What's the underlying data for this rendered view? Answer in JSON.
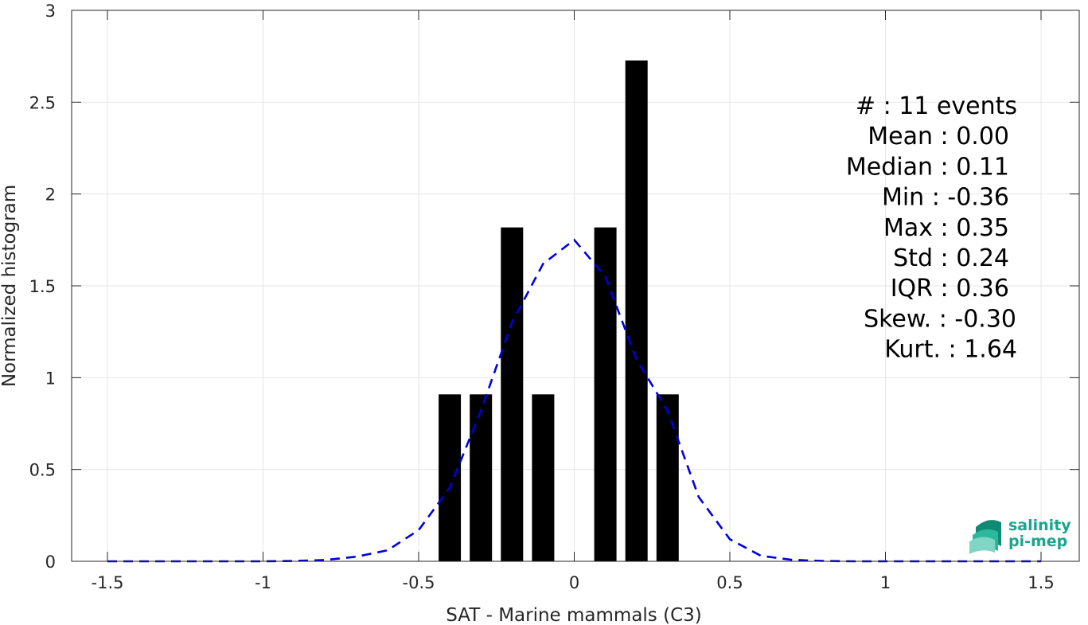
{
  "chart_data": {
    "type": "bar",
    "xlabel": "SAT - Marine mammals (C3)",
    "ylabel": "Normalized histogram",
    "xlim": [
      -1.5,
      1.5
    ],
    "ylim": [
      0,
      3
    ],
    "x_ticks": [
      "-1.5",
      "-1",
      "-0.5",
      "0",
      "0.5",
      "1",
      "1.5"
    ],
    "y_ticks": [
      "0",
      "0.5",
      "1",
      "1.5",
      "2",
      "2.5",
      "3"
    ],
    "grid": true,
    "bin_width": 0.1,
    "bars": {
      "x": [
        -0.4,
        -0.3,
        -0.2,
        -0.1,
        0.1,
        0.2,
        0.3
      ],
      "values": [
        0.909,
        0.909,
        1.818,
        0.909,
        1.818,
        2.727,
        0.909
      ],
      "color": "#000000"
    },
    "fit_curve": {
      "style": "dashed",
      "color": "#0000dd",
      "x": [
        -1.5,
        -1.4,
        -1.3,
        -1.2,
        -1.1,
        -1.0,
        -0.9,
        -0.8,
        -0.7,
        -0.6,
        -0.5,
        -0.4,
        -0.3,
        -0.2,
        -0.1,
        0.0,
        0.1,
        0.2,
        0.3,
        0.4,
        0.5,
        0.6,
        0.7,
        0.8,
        0.9,
        1.0,
        1.1,
        1.2,
        1.3,
        1.4,
        1.5
      ],
      "y": [
        0,
        0,
        0,
        0,
        0,
        0,
        0.002,
        0.007,
        0.025,
        0.06,
        0.17,
        0.4,
        0.82,
        1.3,
        1.62,
        1.75,
        1.55,
        1.1,
        0.82,
        0.35,
        0.12,
        0.03,
        0.008,
        0.002,
        0,
        0,
        0,
        0,
        0,
        0,
        0
      ]
    },
    "stats": [
      "#  : 11 events",
      "Mean : 0.00",
      "Median : 0.11",
      "Min : -0.36",
      "Max : 0.35",
      "Std : 0.24",
      "IQR : 0.36",
      "Skew. : -0.30",
      "Kurt. : 1.64"
    ]
  },
  "logo": {
    "line1": "salinity",
    "line2": "pi-mep",
    "color": "#1aa58c"
  }
}
